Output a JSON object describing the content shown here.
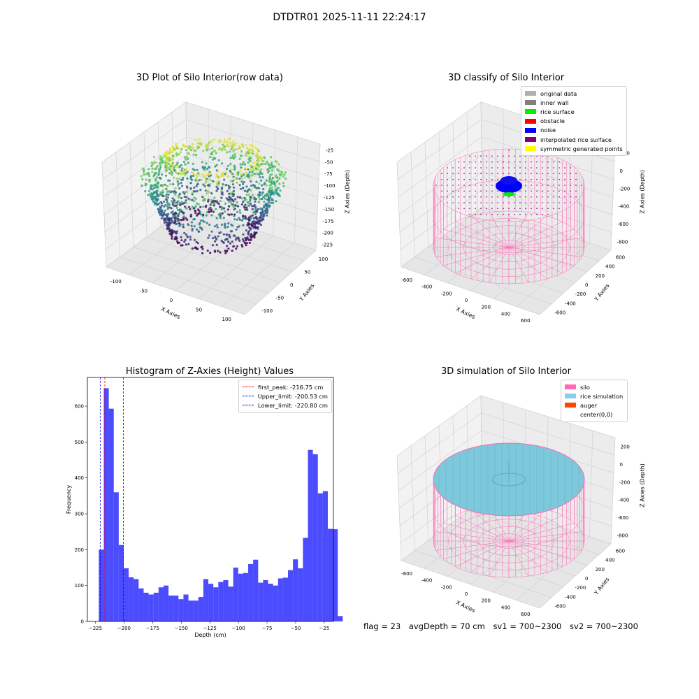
{
  "suptitle": "DTDTR01 2025-11-11 22:24:17",
  "footer": {
    "flag": "flag = 23",
    "avg_depth": "avgDepth = 70 cm",
    "sv1": "sv1 = 700~2300",
    "sv2": "sv2 = 700~2300"
  },
  "chart_data": [
    {
      "type": "scatter",
      "title": "3D Plot of Silo Interior(row data)",
      "xlabel": "X Axies",
      "ylabel": "Y Axies",
      "zlabel": "Z Axies (Depth)",
      "x_ticks": [
        "-100",
        "-50",
        "0",
        "50",
        "100"
      ],
      "y_ticks": [
        "-100",
        "-50",
        "0",
        "50",
        "100"
      ],
      "z_ticks": [
        "-25",
        "-50",
        "-75",
        "-100",
        "-125",
        "-150",
        "-175",
        "-200",
        "-225"
      ],
      "colormap": "viridis"
    },
    {
      "type": "scatter",
      "title": "3D classify of Silo Interior",
      "xlabel": "X Axies",
      "ylabel": "Y Axies",
      "zlabel": "Z Axies (Depth)",
      "x_ticks": [
        "-600",
        "-400",
        "-200",
        "0",
        "200",
        "400",
        "600"
      ],
      "y_ticks": [
        "-600",
        "-400",
        "-200",
        "0",
        "200",
        "400",
        "600"
      ],
      "z_ticks": [
        "200",
        "0",
        "-200",
        "-400",
        "-600",
        "-800"
      ],
      "legend_position": "top-right",
      "legend": [
        {
          "label": "original data",
          "color": "#b0b0b0"
        },
        {
          "label": "inner wall",
          "color": "#808080"
        },
        {
          "label": "rice surface",
          "color": "#00ee00"
        },
        {
          "label": "obstacle",
          "color": "#ff0000"
        },
        {
          "label": "noise",
          "color": "#0000ff"
        },
        {
          "label": "interpolated rice surface",
          "color": "#800080"
        },
        {
          "label": "symmetric generated points",
          "color": "#ffff00"
        }
      ]
    },
    {
      "type": "bar",
      "title": "Histogram of Z-Axies (Height) Values",
      "xlabel": "Depth (cm)",
      "ylabel": "Frequency",
      "xlim": [
        -232,
        -17
      ],
      "ylim": [
        0,
        680
      ],
      "bar_color": "#0000ff",
      "bin_width": 4.35,
      "bins_start": -222,
      "values": [
        200,
        650,
        593,
        360,
        213,
        148,
        123,
        118,
        92,
        80,
        75,
        80,
        95,
        100,
        72,
        72,
        62,
        75,
        58,
        58,
        68,
        118,
        105,
        95,
        110,
        115,
        97,
        150,
        133,
        135,
        160,
        172,
        108,
        115,
        105,
        100,
        120,
        122,
        143,
        173,
        148,
        233,
        478,
        466,
        357,
        363,
        258,
        257,
        15
      ],
      "x_ticks": [
        -225,
        -200,
        -175,
        -150,
        -125,
        -100,
        -75,
        -50,
        -25
      ],
      "y_ticks": [
        0,
        100,
        200,
        300,
        400,
        500,
        600
      ],
      "vlines": [
        {
          "label": "first_peak: -216.75 cm",
          "value": -216.75,
          "color": "#ff0000"
        },
        {
          "label": "Upper_limit: -200.53 cm",
          "value": -200.53,
          "color": "#0000ff"
        },
        {
          "label": "Lower_limit: -220.80 cm",
          "value": -220.8,
          "color": "#0000ff"
        }
      ],
      "legend_position": "top-right"
    },
    {
      "type": "scatter",
      "title": "3D simulation of Silo Interior",
      "xlabel": "X Axies",
      "ylabel": "Y Axies",
      "zlabel": "Z Axies (Depth)",
      "x_ticks": [
        "-600",
        "-400",
        "-200",
        "0",
        "200",
        "400",
        "600"
      ],
      "y_ticks": [
        "-600",
        "-400",
        "-200",
        "0",
        "200",
        "400",
        "600"
      ],
      "z_ticks": [
        "200",
        "0",
        "-200",
        "-400",
        "-600",
        "-800"
      ],
      "legend_position": "top-right",
      "legend": [
        {
          "label": "silo",
          "color": "#ff69b4"
        },
        {
          "label": "rice simulation",
          "color": "#87ceeb"
        },
        {
          "label": "auger",
          "color": "#ff4500"
        },
        {
          "label": "center(0,0)",
          "color": ""
        }
      ]
    }
  ]
}
